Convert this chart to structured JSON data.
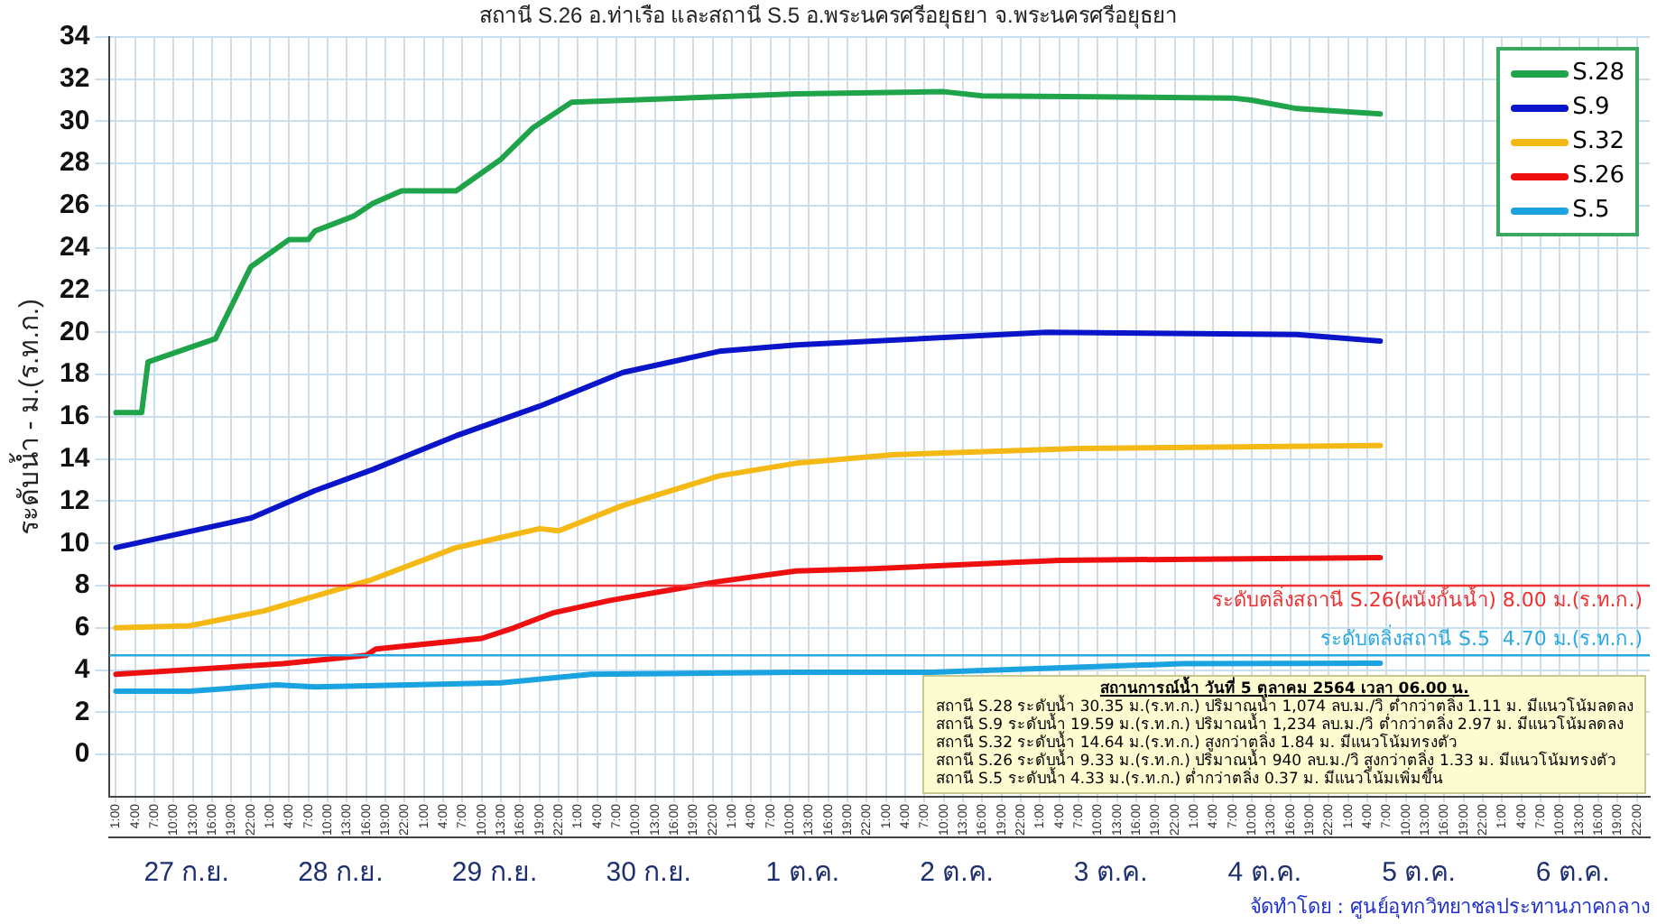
{
  "chart_data": {
    "type": "line",
    "title": "สถานี S.26 อ.ท่าเรือ และสถานี S.5 อ.พระนครศรีอยุธยา จ.พระนครศรีอยุธยา",
    "ylabel": "ระดับน้ำ - ม.(ร.ท.ก.)",
    "xlim": [
      "--09-27T00:00",
      "--10-07T00:00"
    ],
    "xticks": [
      {
        "value": "--09-27T01:00",
        "label": "1:00"
      },
      {
        "value": "--09-27T04:00",
        "label": "4:00"
      },
      {
        "value": "--09-27T07:00",
        "label": "7:00"
      },
      {
        "value": "--09-27T10:00",
        "label": "10:00"
      },
      {
        "value": "--09-27T13:00",
        "label": "13:00"
      },
      {
        "value": "--09-27T16:00",
        "label": "16:00"
      },
      {
        "value": "--09-27T19:00",
        "label": "19:00"
      },
      {
        "value": "--09-27T22:00",
        "label": "22:00"
      },
      {
        "value": "--09-28T01:00",
        "label": "1:00"
      },
      {
        "value": "--09-28T04:00",
        "label": "4:00"
      },
      {
        "value": "--09-28T07:00",
        "label": "7:00"
      },
      {
        "value": "--09-28T10:00",
        "label": "10:00"
      },
      {
        "value": "--09-28T13:00",
        "label": "13:00"
      },
      {
        "value": "--09-28T16:00",
        "label": "16:00"
      },
      {
        "value": "--09-28T19:00",
        "label": "19:00"
      },
      {
        "value": "--09-28T22:00",
        "label": "22:00"
      },
      {
        "value": "--09-29T01:00",
        "label": "1:00"
      },
      {
        "value": "--09-29T04:00",
        "label": "4:00"
      },
      {
        "value": "--09-29T07:00",
        "label": "7:00"
      },
      {
        "value": "--09-29T10:00",
        "label": "10:00"
      },
      {
        "value": "--09-29T13:00",
        "label": "13:00"
      },
      {
        "value": "--09-29T16:00",
        "label": "16:00"
      },
      {
        "value": "--09-29T19:00",
        "label": "19:00"
      },
      {
        "value": "--09-29T22:00",
        "label": "22:00"
      },
      {
        "value": "--09-30T01:00",
        "label": "1:00"
      },
      {
        "value": "--09-30T04:00",
        "label": "4:00"
      },
      {
        "value": "--09-30T07:00",
        "label": "7:00"
      },
      {
        "value": "--09-30T10:00",
        "label": "10:00"
      },
      {
        "value": "--09-30T13:00",
        "label": "13:00"
      },
      {
        "value": "--09-30T16:00",
        "label": "16:00"
      },
      {
        "value": "--09-30T19:00",
        "label": "19:00"
      },
      {
        "value": "--09-30T22:00",
        "label": "22:00"
      },
      {
        "value": "--10-01T01:00",
        "label": "1:00"
      },
      {
        "value": "--10-01T04:00",
        "label": "4:00"
      },
      {
        "value": "--10-01T07:00",
        "label": "7:00"
      },
      {
        "value": "--10-01T10:00",
        "label": "10:00"
      },
      {
        "value": "--10-01T13:00",
        "label": "13:00"
      },
      {
        "value": "--10-01T16:00",
        "label": "16:00"
      },
      {
        "value": "--10-01T19:00",
        "label": "19:00"
      },
      {
        "value": "--10-01T22:00",
        "label": "22:00"
      },
      {
        "value": "--10-02T01:00",
        "label": "1:00"
      },
      {
        "value": "--10-02T04:00",
        "label": "4:00"
      },
      {
        "value": "--10-02T07:00",
        "label": "7:00"
      },
      {
        "value": "--10-02T10:00",
        "label": "10:00"
      },
      {
        "value": "--10-02T13:00",
        "label": "13:00"
      },
      {
        "value": "--10-02T16:00",
        "label": "16:00"
      },
      {
        "value": "--10-02T19:00",
        "label": "19:00"
      },
      {
        "value": "--10-02T22:00",
        "label": "22:00"
      },
      {
        "value": "--10-03T01:00",
        "label": "1:00"
      },
      {
        "value": "--10-03T04:00",
        "label": "4:00"
      },
      {
        "value": "--10-03T07:00",
        "label": "7:00"
      },
      {
        "value": "--10-03T10:00",
        "label": "10:00"
      },
      {
        "value": "--10-03T13:00",
        "label": "13:00"
      },
      {
        "value": "--10-03T16:00",
        "label": "16:00"
      },
      {
        "value": "--10-03T19:00",
        "label": "19:00"
      },
      {
        "value": "--10-03T22:00",
        "label": "22:00"
      },
      {
        "value": "--10-04T01:00",
        "label": "1:00"
      },
      {
        "value": "--10-04T04:00",
        "label": "4:00"
      },
      {
        "value": "--10-04T07:00",
        "label": "7:00"
      },
      {
        "value": "--10-04T10:00",
        "label": "10:00"
      },
      {
        "value": "--10-04T13:00",
        "label": "13:00"
      },
      {
        "value": "--10-04T16:00",
        "label": "16:00"
      },
      {
        "value": "--10-04T19:00",
        "label": "19:00"
      },
      {
        "value": "--10-04T22:00",
        "label": "22:00"
      },
      {
        "value": "--10-05T01:00",
        "label": "1:00"
      },
      {
        "value": "--10-05T04:00",
        "label": "4:00"
      },
      {
        "value": "--10-05T07:00",
        "label": "7:00"
      },
      {
        "value": "--10-05T10:00",
        "label": "10:00"
      },
      {
        "value": "--10-05T13:00",
        "label": "13:00"
      },
      {
        "value": "--10-05T16:00",
        "label": "16:00"
      },
      {
        "value": "--10-05T19:00",
        "label": "19:00"
      },
      {
        "value": "--10-05T22:00",
        "label": "22:00"
      },
      {
        "value": "--10-06T01:00",
        "label": "1:00"
      },
      {
        "value": "--10-06T04:00",
        "label": "4:00"
      },
      {
        "value": "--10-06T07:00",
        "label": "7:00"
      },
      {
        "value": "--10-06T10:00",
        "label": "10:00"
      },
      {
        "value": "--10-06T13:00",
        "label": "13:00"
      },
      {
        "value": "--10-06T16:00",
        "label": "16:00"
      },
      {
        "value": "--10-06T19:00",
        "label": "19:00"
      },
      {
        "value": "--10-06T22:00",
        "label": "22:00"
      }
    ],
    "x2lim": [
      "--09-27T00:00",
      "--10-07T00:00"
    ],
    "x2ticks": [
      {
        "value": "--09-27T12:00",
        "label": "27 ก.ย."
      },
      {
        "value": "--09-28T12:00",
        "label": "28 ก.ย."
      },
      {
        "value": "--09-29T12:00",
        "label": "29 ก.ย."
      },
      {
        "value": "--09-30T12:00",
        "label": "30 ก.ย."
      },
      {
        "value": "--10-01T12:00",
        "label": "1 ต.ค."
      },
      {
        "value": "--10-02T12:00",
        "label": "2 ต.ค."
      },
      {
        "value": "--10-03T12:00",
        "label": "3 ต.ค."
      },
      {
        "value": "--10-04T12:00",
        "label": "4 ต.ค."
      },
      {
        "value": "--10-05T12:00",
        "label": "5 ต.ค."
      },
      {
        "value": "--10-06T12:00",
        "label": "6 ต.ค."
      }
    ],
    "ylim": [
      -2,
      34
    ],
    "yticks": [
      0,
      2,
      4,
      6,
      8,
      10,
      12,
      14,
      16,
      18,
      20,
      22,
      24,
      26,
      28,
      30,
      32,
      34
    ],
    "grid": true,
    "legend": "top right",
    "series": [
      {
        "name": "S.28",
        "color": "#1fa44a",
        "x": [
          "--09-27T01:00",
          "--09-27T05:00",
          "--09-27T06:00",
          "--09-27T16:30",
          "--09-27T22:00",
          "--09-28T04:00",
          "--09-28T07:00",
          "--09-28T08:00",
          "--09-28T14:00",
          "--09-28T17:00",
          "--09-28T21:30",
          "--09-29T06:00",
          "--09-29T13:00",
          "--09-29T18:00",
          "--09-30T00:00",
          "--10-01T11:00",
          "--10-02T10:00",
          "--10-02T16:00",
          "--10-04T07:00",
          "--10-04T10:00",
          "--10-04T17:00",
          "--10-05T06:00"
        ],
        "values": [
          16.2,
          16.2,
          18.6,
          19.7,
          23.1,
          24.4,
          24.4,
          24.8,
          25.5,
          26.1,
          26.7,
          26.7,
          28.2,
          29.7,
          30.9,
          31.3,
          31.4,
          31.2,
          31.1,
          31.0,
          30.6,
          30.35
        ]
      },
      {
        "name": "S.9",
        "color": "#0a14c8",
        "x": [
          "--09-27T01:00",
          "--09-27T22:00",
          "--09-28T08:00",
          "--09-28T17:00",
          "--09-29T06:00",
          "--09-29T19:00",
          "--09-30T08:00",
          "--09-30T23:00",
          "--10-01T11:00",
          "--10-03T02:00",
          "--10-04T17:00",
          "--10-05T06:00"
        ],
        "values": [
          9.8,
          11.2,
          12.5,
          13.5,
          15.1,
          16.5,
          18.1,
          19.1,
          19.4,
          20.0,
          19.9,
          19.59
        ]
      },
      {
        "name": "S.32",
        "color": "#f5b915",
        "x": [
          "--09-27T01:00",
          "--09-27T12:30",
          "--09-28T00:00",
          "--09-28T08:00",
          "--09-28T17:00",
          "--09-29T06:00",
          "--09-29T19:00",
          "--09-29T22:00",
          "--09-30T08:00",
          "--09-30T23:00",
          "--10-01T11:00",
          "--10-02T02:00",
          "--10-03T07:00",
          "--10-05T06:00"
        ],
        "values": [
          6.0,
          6.1,
          6.8,
          7.5,
          8.3,
          9.8,
          10.7,
          10.6,
          11.8,
          13.2,
          13.8,
          14.2,
          14.5,
          14.64
        ]
      },
      {
        "name": "S.26",
        "color": "#ee1010",
        "x": [
          "--09-27T01:00",
          "--09-28T03:00",
          "--09-28T16:00",
          "--09-28T17:30",
          "--09-29T10:00",
          "--09-29T15:00",
          "--09-29T21:00",
          "--09-30T06:00",
          "--09-30T23:00",
          "--10-01T11:00",
          "--10-01T23:00",
          "--10-03T04:00",
          "--10-05T06:00"
        ],
        "values": [
          3.8,
          4.3,
          4.7,
          5.0,
          5.5,
          6.0,
          6.7,
          7.3,
          8.2,
          8.7,
          8.8,
          9.2,
          9.33
        ]
      },
      {
        "name": "S.5",
        "color": "#1aa3e0",
        "x": [
          "--09-27T01:00",
          "--09-27T12:30",
          "--09-28T02:00",
          "--09-28T08:00",
          "--09-29T13:00",
          "--09-30T03:00",
          "--10-01T11:00",
          "--10-02T08:00",
          "--10-03T23:00",
          "--10-05T06:00"
        ],
        "values": [
          3.0,
          3.0,
          3.3,
          3.2,
          3.4,
          3.8,
          3.9,
          3.9,
          4.3,
          4.33
        ]
      }
    ],
    "ref_lines": [
      {
        "axis": "y",
        "value": 8,
        "label": "ระดับตลิ่งสถานี S.26(ผนังกั้นน้ำ) 8.00 ม.(ร.ท.ก.)",
        "color": "#ee3030"
      },
      {
        "axis": "y",
        "value": 4.7,
        "label": "ระดับตลิ่งสถานี S.5  4.70 ม.(ร.ท.ก.)",
        "color": "#2aa8e0"
      }
    ],
    "annotations": [
      "สถานการณ์น้ำ วันที่ 5 ตุลาคม 2564 เวลา 06.00 น.",
      "สถานี S.28 ระดับน้ำ 30.35 ม.(ร.ท.ก.) ปริมาณน้ำ 1,074 ลบ.ม./วิ ต่ำกว่าตลิ่ง 1.11 ม. มีแนวโน้มลดลง",
      "สถานี S.9 ระดับน้ำ 19.59 ม.(ร.ท.ก.) ปริมาณน้ำ 1,234 ลบ.ม./วิ ต่ำกว่าตลิ่ง 2.97 ม. มีแนวโน้มลดลง",
      "สถานี S.32 ระดับน้ำ 14.64 ม.(ร.ท.ก.) สูงกว่าตลิ่ง 1.84 ม. มีแนวโน้มทรงตัว",
      "สถานี S.26 ระดับน้ำ 9.33 ม.(ร.ท.ก.) ปริมาณน้ำ 940 ลบ.ม./วิ สูงกว่าตลิ่ง 1.33 ม. มีแนวโน้มทรงตัว",
      "สถานี S.5 ระดับน้ำ 4.33 ม.(ร.ท.ก.) ต่ำกว่าตลิ่ง 0.37 ม. มีแนวโน้มเพิ่มขึ้น",
      "จัดทำโดย : ศูนย์อุทกวิทยาชลประทานภาคกลาง"
    ]
  }
}
